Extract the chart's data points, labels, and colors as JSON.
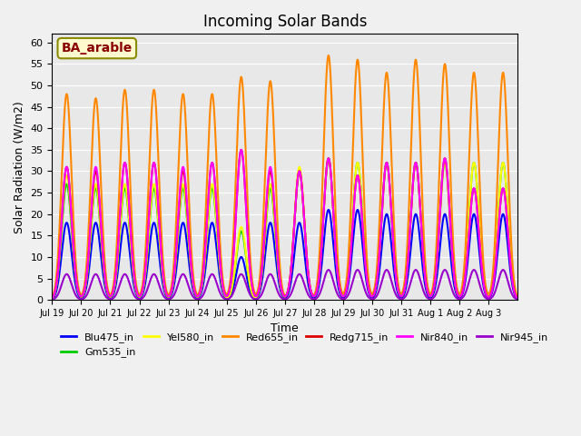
{
  "title": "Incoming Solar Bands",
  "xlabel": "Time",
  "ylabel": "Solar Radiation (W/m2)",
  "annotation": "BA_arable",
  "ylim": [
    0,
    62
  ],
  "yticks": [
    0,
    5,
    10,
    15,
    20,
    25,
    30,
    35,
    40,
    45,
    50,
    55,
    60
  ],
  "date_labels": [
    "Jul 19",
    "Jul 20",
    "Jul 21",
    "Jul 22",
    "Jul 23",
    "Jul 24",
    "Jul 25",
    "Jul 26",
    "Jul 27",
    "Jul 28",
    "Jul 29",
    "Jul 30",
    "Jul 31",
    "Aug 1",
    "Aug 2",
    "Aug 3"
  ],
  "n_days": 16,
  "series_order": [
    "Blu475_in",
    "Gm535_in",
    "Yel580_in",
    "Red655_in",
    "Redg715_in",
    "Nir840_in",
    "Nir945_in"
  ],
  "series_colors": {
    "Blu475_in": "#0000FF",
    "Gm535_in": "#00CC00",
    "Yel580_in": "#FFFF00",
    "Red655_in": "#FF8800",
    "Redg715_in": "#DD0000",
    "Nir840_in": "#FF00FF",
    "Nir945_in": "#9900CC"
  },
  "series_lw": {
    "Blu475_in": 1.5,
    "Gm535_in": 1.5,
    "Yel580_in": 1.5,
    "Red655_in": 1.5,
    "Redg715_in": 1.5,
    "Nir840_in": 1.5,
    "Nir945_in": 1.5
  },
  "peak_heights": {
    "Blu475_in": [
      18,
      18,
      18,
      18,
      18,
      18,
      10,
      18,
      18,
      21,
      21,
      20,
      20,
      20,
      20,
      20
    ],
    "Gm535_in": [
      27,
      26,
      26,
      26,
      26,
      26,
      16,
      26,
      30,
      33,
      32,
      32,
      32,
      32,
      32,
      32
    ],
    "Yel580_in": [
      29,
      27,
      27,
      27,
      27,
      27,
      17,
      27,
      31,
      33,
      32,
      32,
      32,
      32,
      32,
      32
    ],
    "Red655_in": [
      48,
      47,
      49,
      49,
      48,
      48,
      52,
      51,
      30,
      57,
      56,
      53,
      56,
      55,
      53,
      53
    ],
    "Redg715_in": [
      31,
      30,
      32,
      32,
      30,
      32,
      35,
      30,
      30,
      33,
      29,
      32,
      32,
      33,
      26,
      26
    ],
    "Nir840_in": [
      31,
      31,
      32,
      32,
      31,
      32,
      35,
      31,
      30,
      33,
      29,
      32,
      32,
      33,
      26,
      26
    ],
    "Nir945_in": [
      6,
      6,
      6,
      6,
      6,
      6,
      6,
      6,
      6,
      7,
      7,
      7,
      7,
      7,
      7,
      7
    ]
  },
  "background_color": "#e8e8e8",
  "grid_color": "#ffffff",
  "figsize": [
    6.4,
    4.8
  ],
  "dpi": 100
}
